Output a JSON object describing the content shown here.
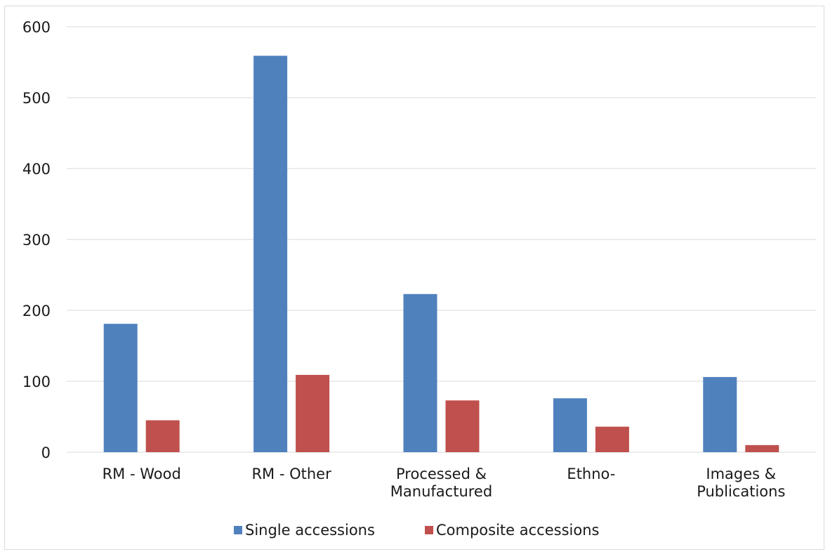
{
  "chart_data": {
    "type": "bar",
    "categories": [
      [
        "RM - Wood"
      ],
      [
        "RM - Other"
      ],
      [
        "Processed &",
        "Manufactured"
      ],
      [
        "Ethno-"
      ],
      [
        "Images &",
        "Publications"
      ]
    ],
    "series": [
      {
        "name": "Single accessions",
        "color": "#4f81bd",
        "values": [
          181,
          559,
          223,
          76,
          106
        ]
      },
      {
        "name": "Composite accessions",
        "color": "#c0504d",
        "values": [
          45,
          109,
          73,
          36,
          10
        ]
      }
    ],
    "ylim": [
      0,
      600
    ],
    "yticks": [
      0,
      100,
      200,
      300,
      400,
      500,
      600
    ],
    "grid": true,
    "legend_position": "bottom",
    "title": "",
    "xlabel": "",
    "ylabel": ""
  }
}
